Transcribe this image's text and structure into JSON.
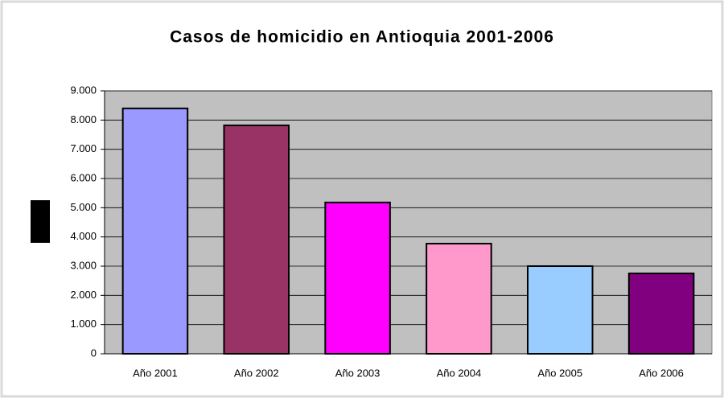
{
  "chart_data": {
    "type": "bar",
    "title": "Casos de homicidio en Antioquia 2001-2006",
    "categories": [
      "Año 2001",
      "Año 2002",
      "Año 2003",
      "Año 2004",
      "Año 2005",
      "Año 2006"
    ],
    "values": [
      8400,
      7820,
      5180,
      3770,
      3000,
      2750
    ],
    "colors": [
      "#9999ff",
      "#993366",
      "#ff00ff",
      "#ff99cc",
      "#99ccff",
      "#800080"
    ],
    "ylim": [
      0,
      9000
    ],
    "yticks": [
      0,
      {
        "value": 1000,
        "label": "1.000"
      },
      {
        "value": 2000,
        "label": "2.000"
      },
      {
        "value": 3000,
        "label": "3.000"
      },
      {
        "value": 4000,
        "label": "4.000"
      },
      {
        "value": 5000,
        "label": "5.000"
      },
      {
        "value": 6000,
        "label": "6.000"
      },
      {
        "value": 7000,
        "label": "7.000"
      },
      {
        "value": 8000,
        "label": "8.000"
      },
      {
        "value": 9000,
        "label": "9.000"
      }
    ],
    "grid": true
  }
}
